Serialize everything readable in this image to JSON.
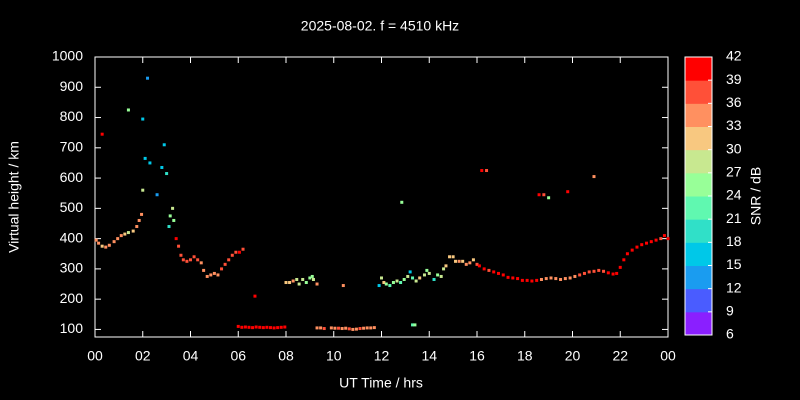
{
  "chart_data": {
    "type": "scatter",
    "title": "2025-08-02. f = 4510 kHz",
    "x_label": "UT Time / hrs",
    "y_label": "Virtual height / km",
    "colorbar_label": "SNR / dB",
    "xlim": [
      0,
      24
    ],
    "xticks": [
      {
        "value": 0,
        "label": "00"
      },
      {
        "value": 2,
        "label": "02"
      },
      {
        "value": 4,
        "label": "04"
      },
      {
        "value": 6,
        "label": "06"
      },
      {
        "value": 8,
        "label": "08"
      },
      10,
      12,
      14,
      16,
      18,
      20,
      22,
      {
        "value": 24,
        "label": "00"
      }
    ],
    "ylim": [
      75,
      1000
    ],
    "yticks": [
      100,
      200,
      300,
      400,
      500,
      600,
      700,
      800,
      900,
      1000
    ],
    "clim": [
      6,
      42
    ],
    "cticks": [
      6,
      9,
      12,
      15,
      18,
      21,
      24,
      27,
      30,
      33,
      36,
      39,
      42
    ],
    "colors": [
      "#8a1fff",
      "#4a5cff",
      "#1a9cf0",
      "#00c8e8",
      "#30e0c8",
      "#60f8b0",
      "#98ff98",
      "#c8e890",
      "#f8c880",
      "#ff9060",
      "#ff5038",
      "#ff0000"
    ],
    "x": [
      0.05,
      0.15,
      0.3,
      0.45,
      0.6,
      0.8,
      0.95,
      1.1,
      1.25,
      1.4,
      1.6,
      1.75,
      1.85,
      1.95,
      2.0,
      0.3,
      1.4,
      2.0,
      2.2,
      2.1,
      2.3,
      2.6,
      2.8,
      2.9,
      3.0,
      3.1,
      3.15,
      3.25,
      3.3,
      3.4,
      3.5,
      3.6,
      3.7,
      3.85,
      4.0,
      4.15,
      4.3,
      4.45,
      4.55,
      4.7,
      4.85,
      5.0,
      5.15,
      5.3,
      5.45,
      5.6,
      5.75,
      5.9,
      6.05,
      6.2,
      6.0,
      6.15,
      6.3,
      6.45,
      6.6,
      6.75,
      6.9,
      7.05,
      7.2,
      7.35,
      7.5,
      7.65,
      7.8,
      7.95,
      6.7,
      8.0,
      8.15,
      8.3,
      8.45,
      8.55,
      8.7,
      8.85,
      9.0,
      9.15,
      9.3,
      9.1,
      9.3,
      9.45,
      9.6,
      9.9,
      10.05,
      10.2,
      10.35,
      10.5,
      10.65,
      10.8,
      10.95,
      11.1,
      11.25,
      11.4,
      11.55,
      11.7,
      10.4,
      11.9,
      12.0,
      12.1,
      12.2,
      12.35,
      12.5,
      12.65,
      12.8,
      12.95,
      13.1,
      13.2,
      13.3,
      13.45,
      13.6,
      13.8,
      13.9,
      14.0,
      14.2,
      14.35,
      14.5,
      14.6,
      14.7,
      14.85,
      15.0,
      15.1,
      15.25,
      15.4,
      15.55,
      15.7,
      15.85,
      16.0,
      12.85,
      13.3,
      13.4,
      16.1,
      16.3,
      16.5,
      16.7,
      16.9,
      17.1,
      17.3,
      17.5,
      17.7,
      17.9,
      18.1,
      18.3,
      18.5,
      18.7,
      18.9,
      19.1,
      19.3,
      19.5,
      19.7,
      19.9,
      20.1,
      20.3,
      20.5,
      20.7,
      20.9,
      21.1,
      21.3,
      21.5,
      21.7,
      21.85,
      22.0,
      22.15,
      22.3,
      22.5,
      22.7,
      22.9,
      23.1,
      23.3,
      23.5,
      23.7,
      23.85,
      24.0,
      16.2,
      16.4,
      18.6,
      18.8,
      19.0,
      19.8,
      20.9
    ],
    "y": [
      395,
      385,
      375,
      372,
      378,
      390,
      400,
      410,
      415,
      420,
      425,
      440,
      460,
      480,
      560,
      745,
      825,
      795,
      930,
      665,
      650,
      545,
      635,
      710,
      615,
      440,
      475,
      500,
      460,
      400,
      375,
      345,
      330,
      325,
      330,
      340,
      330,
      320,
      295,
      275,
      280,
      285,
      280,
      300,
      315,
      330,
      345,
      355,
      355,
      365,
      110,
      107,
      108,
      107,
      106,
      108,
      107,
      106,
      107,
      106,
      105,
      106,
      107,
      108,
      210,
      255,
      255,
      260,
      265,
      250,
      265,
      255,
      270,
      265,
      250,
      275,
      105,
      105,
      103,
      105,
      104,
      104,
      103,
      104,
      102,
      100,
      101,
      103,
      104,
      105,
      105,
      106,
      245,
      245,
      270,
      255,
      250,
      245,
      255,
      260,
      255,
      265,
      275,
      290,
      270,
      260,
      270,
      280,
      295,
      285,
      265,
      280,
      275,
      300,
      310,
      340,
      340,
      325,
      325,
      325,
      315,
      320,
      330,
      315,
      520,
      115,
      115,
      310,
      300,
      295,
      290,
      285,
      280,
      272,
      270,
      268,
      262,
      262,
      260,
      262,
      265,
      268,
      270,
      268,
      265,
      268,
      270,
      275,
      280,
      285,
      290,
      292,
      295,
      292,
      287,
      283,
      285,
      305,
      330,
      350,
      362,
      372,
      380,
      385,
      390,
      395,
      400,
      410,
      400,
      625,
      625,
      545,
      545,
      535,
      555,
      605
    ],
    "snr": [
      33,
      33,
      30,
      33,
      33,
      33,
      33,
      33,
      30,
      27,
      30,
      33,
      33,
      33,
      27,
      39,
      24,
      15,
      12,
      15,
      15,
      12,
      15,
      15,
      18,
      18,
      24,
      27,
      24,
      39,
      36,
      36,
      36,
      36,
      36,
      36,
      36,
      33,
      33,
      33,
      33,
      33,
      33,
      36,
      36,
      36,
      36,
      36,
      39,
      36,
      39,
      42,
      42,
      42,
      42,
      42,
      42,
      42,
      42,
      42,
      42,
      42,
      42,
      42,
      42,
      30,
      30,
      33,
      27,
      27,
      27,
      24,
      24,
      27,
      33,
      24,
      33,
      33,
      36,
      33,
      33,
      36,
      33,
      33,
      36,
      33,
      33,
      36,
      33,
      33,
      33,
      33,
      33,
      15,
      27,
      30,
      24,
      21,
      24,
      27,
      21,
      24,
      27,
      15,
      21,
      27,
      30,
      27,
      24,
      27,
      18,
      24,
      27,
      27,
      30,
      30,
      30,
      30,
      33,
      30,
      33,
      33,
      30,
      36,
      24,
      21,
      24,
      39,
      39,
      36,
      39,
      39,
      39,
      39,
      42,
      39,
      39,
      42,
      42,
      39,
      33,
      33,
      33,
      33,
      33,
      33,
      33,
      33,
      36,
      36,
      36,
      36,
      36,
      36,
      39,
      39,
      39,
      39,
      39,
      39,
      39,
      39,
      39,
      39,
      39,
      39,
      36,
      39,
      39,
      39,
      36,
      39,
      36,
      24,
      39,
      33
    ]
  }
}
